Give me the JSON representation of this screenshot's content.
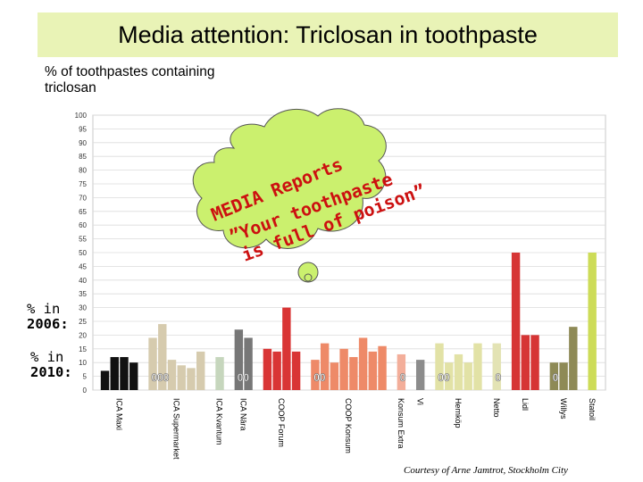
{
  "title": "Media attention: Triclosan in toothpaste",
  "ylabel": "% of toothpastes containing triclosan",
  "label_2006": {
    "prefix": "% in",
    "year": "2006:"
  },
  "label_2010": {
    "prefix": "% in",
    "year": "2010:"
  },
  "cloud_text": [
    "MEDIA Reports",
    "”Your toothpaste",
    "is full of poison”"
  ],
  "credit": "Courtesy of Arne Jamtrot, Stockholm City",
  "colors": {
    "title_bg": "#e9f3b6",
    "cloud_fill": "#cbf06e",
    "cloud_text": "#cc1010",
    "series_2010_label": "#ffffff"
  },
  "chart_data": {
    "type": "bar",
    "title": "Media attention: Triclosan in toothpaste",
    "ylabel": "% of toothpastes containing triclosan",
    "ylim": [
      0,
      100
    ],
    "yticks": [
      0,
      5,
      10,
      15,
      20,
      25,
      30,
      35,
      40,
      45,
      50,
      55,
      60,
      65,
      70,
      75,
      80,
      85,
      90,
      95,
      100
    ],
    "grid": true,
    "categories": [
      "ICA Maxi",
      "ICA Supermarket",
      "ICA Kvantum",
      "ICA Nära",
      "COOP Forum",
      "COOP Konsum",
      "Konsum Extra",
      "Vi",
      "Hemköp",
      "Netto",
      "Lidl",
      "Willys",
      "Statoil"
    ],
    "groups": [
      {
        "category": "ICA Maxi",
        "color": "#111111",
        "values_2006": [
          7,
          12,
          12,
          10
        ],
        "labels_2010": []
      },
      {
        "category": "ICA Supermarket",
        "color": "#d6cbae",
        "values_2006": [
          19,
          24,
          11,
          9,
          8,
          14
        ],
        "labels_2010": [
          "0",
          "0",
          "0"
        ]
      },
      {
        "category": "ICA Kvantum",
        "color": "#c6d6bd",
        "values_2006": [
          12
        ],
        "labels_2010": []
      },
      {
        "category": "ICA Nära",
        "color": "#777777",
        "values_2006": [
          22,
          19
        ],
        "labels_2010": [
          "0",
          "0"
        ]
      },
      {
        "category": "COOP Forum",
        "color": "#d93535",
        "values_2006": [
          15,
          14,
          30,
          14
        ],
        "labels_2010": []
      },
      {
        "category": "COOP Konsum",
        "color": "#ee8a68",
        "values_2006": [
          11,
          17,
          10,
          15,
          12,
          19,
          14,
          16
        ],
        "labels_2010": [
          "0",
          "0"
        ]
      },
      {
        "category": "Konsum Extra",
        "color": "#f3ae9a",
        "values_2006": [
          13
        ],
        "labels_2010": [
          "0"
        ]
      },
      {
        "category": "Vi",
        "color": "#8c8c8c",
        "values_2006": [
          11
        ],
        "labels_2010": []
      },
      {
        "category": "Hemköp",
        "color": "#e2e2a6",
        "values_2006": [
          17,
          10,
          13,
          10,
          17
        ],
        "labels_2010": [
          "0",
          "0"
        ]
      },
      {
        "category": "Netto",
        "color": "#e3e3b4",
        "values_2006": [
          17
        ],
        "labels_2010": [
          "0"
        ]
      },
      {
        "category": "Lidl",
        "color": "#d63535",
        "values_2006": [
          50,
          20,
          20
        ],
        "labels_2010": []
      },
      {
        "category": "Willys",
        "color": "#8e8a56",
        "values_2006": [
          10,
          10,
          23
        ],
        "labels_2010": [
          "0"
        ]
      },
      {
        "category": "Statoil",
        "color": "#cddc58",
        "values_2006": [
          50
        ],
        "labels_2010": []
      }
    ]
  }
}
